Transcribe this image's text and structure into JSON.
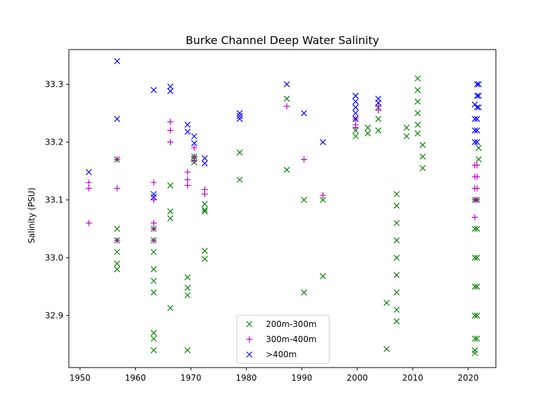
{
  "chart_data": {
    "type": "scatter",
    "title": "Burke Channel Deep Water Salinity",
    "xlabel": "",
    "ylabel": "Salinity (PSU)",
    "xlim": [
      1948,
      2025
    ],
    "ylim": [
      32.81,
      33.36
    ],
    "xticks": [
      1950,
      1960,
      1970,
      1980,
      1990,
      2000,
      2010,
      2020
    ],
    "yticks": [
      32.9,
      33.0,
      33.1,
      33.2,
      33.3
    ],
    "ytick_labels": [
      "32.9",
      "33.0",
      "33.1",
      "33.2",
      "33.3"
    ],
    "legend_position": "bottom-center",
    "series": [
      {
        "name": "200m-300m",
        "marker": "x",
        "color": "#008000",
        "points": [
          [
            1956.7,
            33.17
          ],
          [
            1956.7,
            33.05
          ],
          [
            1956.7,
            33.03
          ],
          [
            1956.7,
            33.01
          ],
          [
            1956.7,
            32.99
          ],
          [
            1956.7,
            32.98
          ],
          [
            1963.3,
            33.05
          ],
          [
            1963.3,
            33.03
          ],
          [
            1963.3,
            33.01
          ],
          [
            1963.3,
            32.98
          ],
          [
            1963.3,
            32.96
          ],
          [
            1963.3,
            32.94
          ],
          [
            1963.3,
            32.87
          ],
          [
            1963.3,
            32.86
          ],
          [
            1963.3,
            32.84
          ],
          [
            1966.3,
            33.125
          ],
          [
            1966.3,
            33.08
          ],
          [
            1966.3,
            33.068
          ],
          [
            1966.3,
            32.913
          ],
          [
            1969.4,
            32.966
          ],
          [
            1969.4,
            32.948
          ],
          [
            1969.4,
            32.935
          ],
          [
            1969.4,
            32.84
          ],
          [
            1970.6,
            33.175
          ],
          [
            1970.6,
            33.17
          ],
          [
            1970.6,
            33.165
          ],
          [
            1972.5,
            33.093
          ],
          [
            1972.5,
            33.083
          ],
          [
            1972.5,
            33.08
          ],
          [
            1972.5,
            33.012
          ],
          [
            1972.5,
            32.998
          ],
          [
            1978.8,
            33.182
          ],
          [
            1978.8,
            33.135
          ],
          [
            1987.3,
            33.275
          ],
          [
            1987.3,
            33.152
          ],
          [
            1990.4,
            33.1
          ],
          [
            1990.4,
            32.94
          ],
          [
            1993.8,
            33.1
          ],
          [
            1993.8,
            32.968
          ],
          [
            1999.7,
            33.28
          ],
          [
            1999.7,
            33.26
          ],
          [
            1999.7,
            33.24
          ],
          [
            1999.7,
            33.22
          ],
          [
            1999.7,
            33.21
          ],
          [
            2001.9,
            33.225
          ],
          [
            2001.9,
            33.215
          ],
          [
            2003.8,
            33.26
          ],
          [
            2003.8,
            33.24
          ],
          [
            2003.8,
            33.22
          ],
          [
            2005.3,
            32.922
          ],
          [
            2005.3,
            32.842
          ],
          [
            2007.1,
            33.11
          ],
          [
            2007.1,
            33.09
          ],
          [
            2007.1,
            33.06
          ],
          [
            2007.1,
            33.03
          ],
          [
            2007.1,
            33.0
          ],
          [
            2007.1,
            32.97
          ],
          [
            2007.1,
            32.94
          ],
          [
            2007.1,
            32.91
          ],
          [
            2007.1,
            32.89
          ],
          [
            2008.9,
            33.225
          ],
          [
            2008.9,
            33.21
          ],
          [
            2010.9,
            33.31
          ],
          [
            2010.9,
            33.29
          ],
          [
            2010.9,
            33.27
          ],
          [
            2010.9,
            33.25
          ],
          [
            2010.9,
            33.23
          ],
          [
            2010.9,
            33.215
          ],
          [
            2011.8,
            33.195
          ],
          [
            2011.8,
            33.175
          ],
          [
            2011.8,
            33.155
          ],
          [
            2021.2,
            33.1
          ],
          [
            2021.2,
            33.05
          ],
          [
            2021.2,
            33.0
          ],
          [
            2021.2,
            32.95
          ],
          [
            2021.2,
            32.9
          ],
          [
            2021.2,
            32.86
          ],
          [
            2021.2,
            32.84
          ],
          [
            2021.2,
            32.835
          ],
          [
            2021.6,
            33.1
          ],
          [
            2021.6,
            33.05
          ],
          [
            2021.6,
            33.0
          ],
          [
            2021.6,
            32.95
          ],
          [
            2021.6,
            32.9
          ],
          [
            2021.6,
            32.86
          ],
          [
            2021.9,
            33.19
          ],
          [
            2021.9,
            33.17
          ]
        ]
      },
      {
        "name": "300m-400m",
        "marker": "+",
        "color": "#bf00bf",
        "points": [
          [
            1951.6,
            33.13
          ],
          [
            1951.6,
            33.12
          ],
          [
            1951.6,
            33.06
          ],
          [
            1956.7,
            33.17
          ],
          [
            1956.7,
            33.12
          ],
          [
            1956.7,
            33.03
          ],
          [
            1963.3,
            33.13
          ],
          [
            1963.3,
            33.1
          ],
          [
            1963.3,
            33.06
          ],
          [
            1963.3,
            33.05
          ],
          [
            1963.3,
            33.03
          ],
          [
            1966.3,
            33.235
          ],
          [
            1966.3,
            33.22
          ],
          [
            1966.3,
            33.2
          ],
          [
            1969.4,
            33.148
          ],
          [
            1969.4,
            33.135
          ],
          [
            1969.4,
            33.125
          ],
          [
            1970.6,
            33.19
          ],
          [
            1970.6,
            33.175
          ],
          [
            1970.6,
            33.168
          ],
          [
            1972.5,
            33.118
          ],
          [
            1972.5,
            33.11
          ],
          [
            1987.3,
            33.262
          ],
          [
            1990.4,
            33.17
          ],
          [
            1993.8,
            33.108
          ],
          [
            1999.7,
            33.24
          ],
          [
            1999.7,
            33.23
          ],
          [
            1999.7,
            33.225
          ],
          [
            2003.8,
            33.262
          ],
          [
            2003.8,
            33.255
          ],
          [
            2021.2,
            33.16
          ],
          [
            2021.2,
            33.14
          ],
          [
            2021.2,
            33.12
          ],
          [
            2021.2,
            33.1
          ],
          [
            2021.2,
            33.07
          ],
          [
            2021.6,
            33.16
          ],
          [
            2021.6,
            33.14
          ],
          [
            2021.6,
            33.12
          ],
          [
            2021.6,
            33.1
          ]
        ]
      },
      {
        "name": ">400m",
        "marker": "x",
        "color": "#0000ff",
        "points": [
          [
            1951.6,
            33.148
          ],
          [
            1956.7,
            33.34
          ],
          [
            1956.7,
            33.24
          ],
          [
            1963.3,
            33.29
          ],
          [
            1963.3,
            33.11
          ],
          [
            1963.3,
            33.105
          ],
          [
            1966.3,
            33.296
          ],
          [
            1966.3,
            33.288
          ],
          [
            1969.4,
            33.23
          ],
          [
            1969.4,
            33.218
          ],
          [
            1970.6,
            33.21
          ],
          [
            1970.6,
            33.198
          ],
          [
            1972.5,
            33.172
          ],
          [
            1972.5,
            33.163
          ],
          [
            1978.8,
            33.25
          ],
          [
            1978.8,
            33.245
          ],
          [
            1978.8,
            33.24
          ],
          [
            1987.3,
            33.3
          ],
          [
            1990.4,
            33.25
          ],
          [
            1993.8,
            33.2
          ],
          [
            1999.7,
            33.28
          ],
          [
            1999.7,
            33.27
          ],
          [
            1999.7,
            33.26
          ],
          [
            1999.7,
            33.25
          ],
          [
            1999.7,
            33.24
          ],
          [
            2003.8,
            33.275
          ],
          [
            2003.8,
            33.268
          ],
          [
            2021.2,
            33.265
          ],
          [
            2021.2,
            33.24
          ],
          [
            2021.2,
            33.22
          ],
          [
            2021.2,
            33.2
          ],
          [
            2021.6,
            33.3
          ],
          [
            2021.6,
            33.28
          ],
          [
            2021.6,
            33.26
          ],
          [
            2021.6,
            33.24
          ],
          [
            2021.6,
            33.22
          ],
          [
            2021.6,
            33.2
          ],
          [
            2021.9,
            33.3
          ],
          [
            2021.9,
            33.28
          ],
          [
            2021.9,
            33.26
          ]
        ]
      }
    ]
  }
}
